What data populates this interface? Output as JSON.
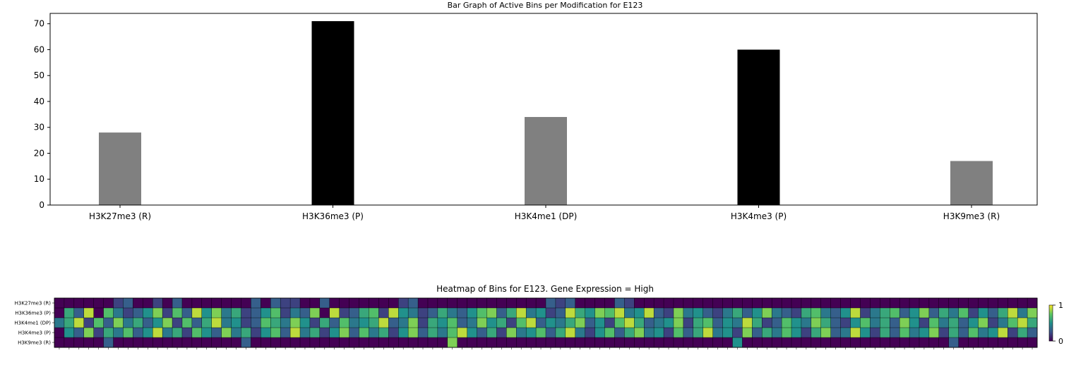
{
  "chart_data": [
    {
      "type": "bar",
      "title": "Bar Graph of Active Bins per Modification for E123",
      "categories": [
        "H3K27me3 (R)",
        "H3K36me3 (P)",
        "H3K4me1 (DP)",
        "H3K4me3 (P)",
        "H3K9me3 (R)"
      ],
      "values": [
        28,
        71,
        34,
        60,
        17
      ],
      "bar_colors": [
        "#808080",
        "#000000",
        "#808080",
        "#000000",
        "#808080"
      ],
      "ylim": [
        0,
        74
      ],
      "yticks": [
        0,
        10,
        20,
        30,
        40,
        50,
        60,
        70
      ],
      "xlabel": "",
      "ylabel": "",
      "grid": false
    },
    {
      "type": "heatmap",
      "title": "Heatmap of Bins for E123. Gene Expression = High",
      "rows": [
        "H3K27me3 (R)",
        "H3K36me3 (P)",
        "H3K4me1 (DP)",
        "H3K4me3 (P)",
        "H3K9me3 (R)"
      ],
      "n_columns": 100,
      "colormap": "viridis",
      "colorbar": {
        "min": 0,
        "max": 1,
        "ticks": [
          "0",
          "1"
        ]
      },
      "values": [
        [
          0,
          0,
          0,
          0,
          0,
          0,
          0.2,
          0.3,
          0,
          0,
          0.2,
          0,
          0.3,
          0,
          0,
          0,
          0,
          0,
          0,
          0,
          0.3,
          0,
          0.3,
          0.2,
          0.2,
          0,
          0,
          0.3,
          0,
          0,
          0,
          0,
          0,
          0,
          0,
          0.2,
          0.3,
          0,
          0,
          0,
          0,
          0,
          0,
          0,
          0,
          0,
          0,
          0,
          0,
          0,
          0.3,
          0.2,
          0.3,
          0,
          0,
          0,
          0,
          0.3,
          0.2,
          0,
          0,
          0,
          0,
          0,
          0,
          0,
          0,
          0,
          0,
          0,
          0,
          0,
          0,
          0,
          0,
          0,
          0,
          0,
          0,
          0,
          0,
          0,
          0,
          0,
          0,
          0,
          0,
          0,
          0,
          0,
          0,
          0,
          0,
          0,
          0,
          0,
          0,
          0,
          0,
          0
        ],
        [
          0,
          0.6,
          0.3,
          0.9,
          0,
          0.7,
          0.4,
          0.2,
          0.3,
          0.5,
          0.8,
          0.2,
          0.7,
          0.3,
          0.9,
          0.5,
          0.8,
          0.4,
          0.6,
          0.2,
          0.3,
          0.5,
          0.7,
          0.2,
          0.4,
          0.3,
          0.8,
          0,
          0.9,
          0.2,
          0.3,
          0.6,
          0.7,
          0.2,
          0.9,
          0.5,
          0.4,
          0.2,
          0.3,
          0.6,
          0.4,
          0.3,
          0.5,
          0.7,
          0.8,
          0.3,
          0.6,
          0.9,
          0.4,
          0.5,
          0.2,
          0.3,
          0.9,
          0.6,
          0.5,
          0.8,
          0.7,
          0.9,
          0.4,
          0.5,
          0.9,
          0.3,
          0.2,
          0.8,
          0.4,
          0.5,
          0.3,
          0.2,
          0.4,
          0.6,
          0.3,
          0.5,
          0.8,
          0.4,
          0.3,
          0.2,
          0.6,
          0.7,
          0.4,
          0.3,
          0.5,
          0.9,
          0.2,
          0.4,
          0.6,
          0.7,
          0.3,
          0.5,
          0.8,
          0.3,
          0.6,
          0.4,
          0.7,
          0.2,
          0.5,
          0.3,
          0.6,
          0.9,
          0.4,
          0.8
        ],
        [
          0.4,
          0.6,
          0.9,
          0.2,
          0.7,
          0.3,
          0.8,
          0.4,
          0.6,
          0.3,
          0.5,
          0.8,
          0.2,
          0.7,
          0.3,
          0.6,
          0.9,
          0.4,
          0.5,
          0.2,
          0.3,
          0.7,
          0.6,
          0.4,
          0.8,
          0.5,
          0.2,
          0.6,
          0.3,
          0.7,
          0.4,
          0.5,
          0.6,
          0.9,
          0.3,
          0.4,
          0.8,
          0.2,
          0.6,
          0.5,
          0.7,
          0.3,
          0.4,
          0.8,
          0.5,
          0.6,
          0.2,
          0.7,
          0.9,
          0.3,
          0.5,
          0.4,
          0.6,
          0.8,
          0.3,
          0.5,
          0.2,
          0.7,
          0.9,
          0.6,
          0.3,
          0.4,
          0.5,
          0.8,
          0.2,
          0.6,
          0.7,
          0.3,
          0.5,
          0.4,
          0.9,
          0.6,
          0.2,
          0.3,
          0.7,
          0.5,
          0.4,
          0.8,
          0.6,
          0.3,
          0.2,
          0.5,
          0.7,
          0.4,
          0.6,
          0.3,
          0.8,
          0.5,
          0.2,
          0.7,
          0.4,
          0.6,
          0.3,
          0.5,
          0.8,
          0.2,
          0.4,
          0.7,
          0.9,
          0.6
        ],
        [
          0,
          0.5,
          0.3,
          0.8,
          0.2,
          0.6,
          0.4,
          0.7,
          0.3,
          0.5,
          0.9,
          0.4,
          0.6,
          0.2,
          0.7,
          0.5,
          0.3,
          0.8,
          0.4,
          0.6,
          0.2,
          0.5,
          0.7,
          0.3,
          0.9,
          0.4,
          0.6,
          0.2,
          0.5,
          0.8,
          0.3,
          0.7,
          0.4,
          0.6,
          0.2,
          0.5,
          0.8,
          0.3,
          0.6,
          0.4,
          0.7,
          0.9,
          0.5,
          0.3,
          0.6,
          0.2,
          0.8,
          0.4,
          0.5,
          0.7,
          0.3,
          0.6,
          0.9,
          0.4,
          0.2,
          0.5,
          0.7,
          0.3,
          0.6,
          0.8,
          0.4,
          0.5,
          0.2,
          0.7,
          0.3,
          0.6,
          0.9,
          0.4,
          0.5,
          0.2,
          0.8,
          0.3,
          0.6,
          0.4,
          0.7,
          0.5,
          0.2,
          0.6,
          0.8,
          0.3,
          0.4,
          0.9,
          0.5,
          0.2,
          0.6,
          0.3,
          0.7,
          0.4,
          0.5,
          0.8,
          0.2,
          0.6,
          0.3,
          0.7,
          0.4,
          0.5,
          0.9,
          0.2,
          0.6,
          0.3
        ],
        [
          0,
          0,
          0,
          0,
          0,
          0.3,
          0,
          0,
          0,
          0,
          0,
          0,
          0,
          0,
          0,
          0,
          0,
          0,
          0,
          0.3,
          0,
          0,
          0,
          0,
          0,
          0,
          0,
          0,
          0,
          0,
          0,
          0,
          0,
          0,
          0,
          0,
          0,
          0,
          0,
          0,
          0.8,
          0,
          0,
          0,
          0,
          0,
          0,
          0,
          0,
          0,
          0,
          0,
          0,
          0,
          0,
          0,
          0,
          0,
          0,
          0,
          0,
          0,
          0,
          0,
          0,
          0,
          0,
          0,
          0,
          0.5,
          0,
          0,
          0,
          0,
          0,
          0,
          0,
          0,
          0,
          0,
          0,
          0,
          0,
          0,
          0,
          0,
          0,
          0,
          0,
          0,
          0,
          0.3,
          0,
          0,
          0,
          0,
          0,
          0,
          0,
          0
        ]
      ]
    }
  ]
}
